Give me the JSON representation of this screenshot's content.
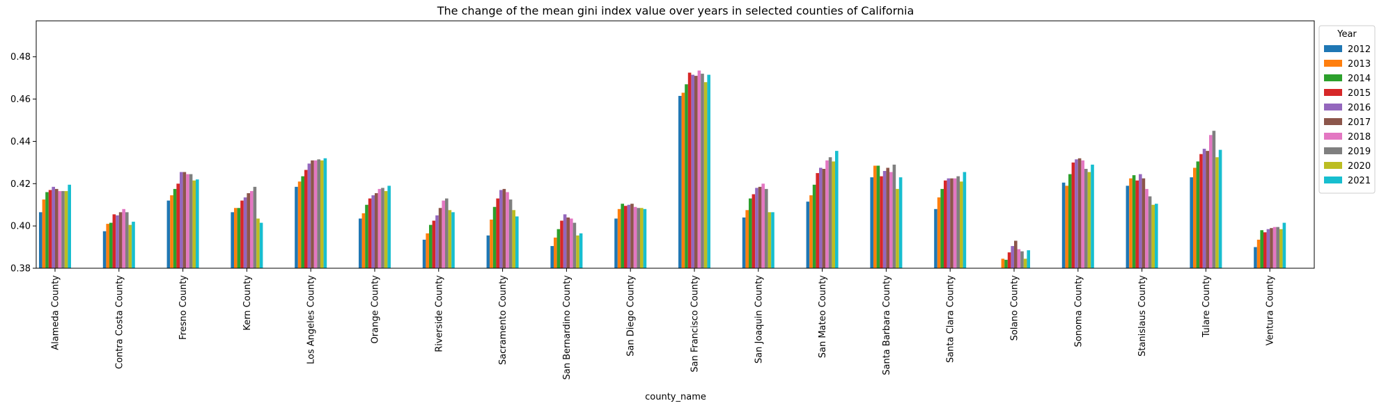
{
  "chart_data": {
    "type": "bar",
    "title": "The change of the mean gini index value over years in selected counties of California",
    "xlabel": "county_name",
    "ylabel": "",
    "ylim": [
      0.38,
      0.497
    ],
    "yticks": [
      "0.38",
      "0.40",
      "0.42",
      "0.44",
      "0.46",
      "0.48"
    ],
    "legend_title": "Year",
    "legend_position": "upper-right-outside",
    "grid": false,
    "categories": [
      "Alameda County",
      "Contra Costa County",
      "Fresno County",
      "Kern County",
      "Los Angeles County",
      "Orange County",
      "Riverside County",
      "Sacramento County",
      "San Bernardino County",
      "San Diego County",
      "San Francisco County",
      "San Joaquin County",
      "San Mateo County",
      "Santa Barbara County",
      "Santa Clara County",
      "Solano County",
      "Sonoma County",
      "Stanislaus County",
      "Tulare County",
      "Ventura County"
    ],
    "series": [
      {
        "name": "2012",
        "color": "#1f77b4",
        "values": [
          0.4065,
          0.3975,
          0.412,
          0.4065,
          0.4185,
          0.4035,
          0.3935,
          0.3955,
          0.3905,
          0.4035,
          0.4615,
          0.404,
          0.4115,
          0.423,
          0.408,
          0.3765,
          0.4205,
          0.419,
          0.423,
          0.39
        ]
      },
      {
        "name": "2013",
        "color": "#ff7f0e",
        "values": [
          0.4125,
          0.401,
          0.4145,
          0.4085,
          0.421,
          0.406,
          0.3965,
          0.403,
          0.3945,
          0.408,
          0.463,
          0.4075,
          0.4145,
          0.4285,
          0.4135,
          0.3845,
          0.419,
          0.4225,
          0.4275,
          0.3935
        ]
      },
      {
        "name": "2014",
        "color": "#2ca02c",
        "values": [
          0.416,
          0.4015,
          0.4175,
          0.4085,
          0.4235,
          0.41,
          0.4005,
          0.409,
          0.3985,
          0.4105,
          0.467,
          0.413,
          0.4195,
          0.4285,
          0.4175,
          0.384,
          0.4245,
          0.424,
          0.4305,
          0.398
        ]
      },
      {
        "name": "2015",
        "color": "#d62728",
        "values": [
          0.417,
          0.4055,
          0.42,
          0.412,
          0.4265,
          0.413,
          0.4025,
          0.413,
          0.4025,
          0.4095,
          0.4725,
          0.415,
          0.425,
          0.4235,
          0.4215,
          0.3875,
          0.43,
          0.4215,
          0.434,
          0.397
        ]
      },
      {
        "name": "2016",
        "color": "#9467bd",
        "values": [
          0.4185,
          0.405,
          0.4255,
          0.4135,
          0.4295,
          0.4145,
          0.405,
          0.417,
          0.4055,
          0.41,
          0.4715,
          0.418,
          0.4275,
          0.426,
          0.4225,
          0.3905,
          0.4315,
          0.4245,
          0.4365,
          0.3985
        ]
      },
      {
        "name": "2017",
        "color": "#8c564b",
        "values": [
          0.4175,
          0.4065,
          0.4255,
          0.4155,
          0.431,
          0.4155,
          0.4085,
          0.4175,
          0.404,
          0.4105,
          0.471,
          0.4185,
          0.427,
          0.4275,
          0.4225,
          0.393,
          0.432,
          0.4225,
          0.4355,
          0.399
        ]
      },
      {
        "name": "2018",
        "color": "#e377c2",
        "values": [
          0.4165,
          0.408,
          0.4245,
          0.4165,
          0.431,
          0.4175,
          0.412,
          0.416,
          0.4035,
          0.409,
          0.4735,
          0.42,
          0.431,
          0.4255,
          0.4225,
          0.389,
          0.431,
          0.4175,
          0.443,
          0.3995
        ]
      },
      {
        "name": "2019",
        "color": "#7f7f7f",
        "values": [
          0.4165,
          0.4065,
          0.4245,
          0.4185,
          0.4315,
          0.418,
          0.413,
          0.4125,
          0.4015,
          0.4085,
          0.472,
          0.4175,
          0.4325,
          0.429,
          0.4235,
          0.388,
          0.427,
          0.414,
          0.445,
          0.3995
        ]
      },
      {
        "name": "2020",
        "color": "#bcbd22",
        "values": [
          0.4165,
          0.4005,
          0.4215,
          0.4035,
          0.431,
          0.4165,
          0.4075,
          0.4075,
          0.3955,
          0.4085,
          0.468,
          0.4065,
          0.4305,
          0.4175,
          0.421,
          0.3845,
          0.4255,
          0.41,
          0.4325,
          0.3985
        ]
      },
      {
        "name": "2021",
        "color": "#17becf",
        "values": [
          0.4195,
          0.402,
          0.422,
          0.4015,
          0.432,
          0.419,
          0.4065,
          0.4045,
          0.3965,
          0.408,
          0.4715,
          0.4065,
          0.4355,
          0.423,
          0.4255,
          0.3885,
          0.429,
          0.4105,
          0.436,
          0.4015
        ]
      }
    ]
  }
}
